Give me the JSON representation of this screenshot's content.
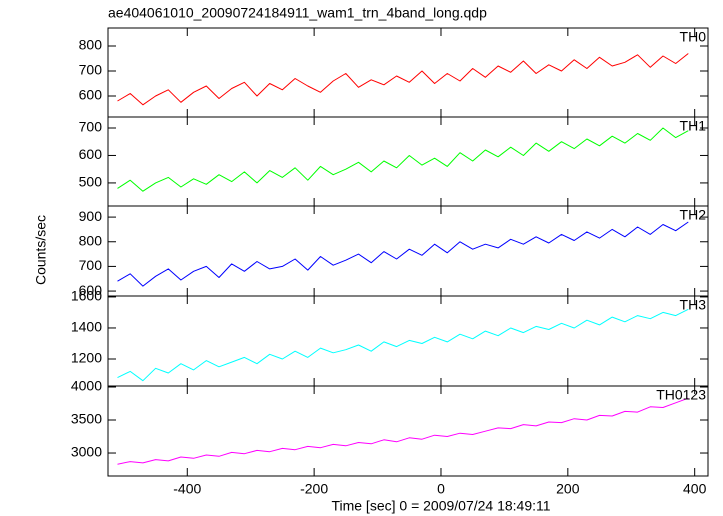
{
  "chart_data": [
    {
      "type": "line",
      "title": "ae404061010_20090724184911_wam1_trn_4band_long.qdp",
      "label": "TH0",
      "color": "#ff0000",
      "x": [
        -510,
        -490,
        -470,
        -450,
        -430,
        -410,
        -390,
        -370,
        -350,
        -330,
        -310,
        -290,
        -270,
        -250,
        -230,
        -210,
        -190,
        -170,
        -150,
        -130,
        -110,
        -90,
        -70,
        -50,
        -30,
        -10,
        10,
        30,
        50,
        70,
        90,
        110,
        130,
        150,
        170,
        190,
        210,
        230,
        250,
        270,
        290,
        310,
        330,
        350,
        370,
        390
      ],
      "values": [
        580,
        610,
        565,
        600,
        625,
        575,
        615,
        640,
        590,
        630,
        655,
        600,
        650,
        625,
        670,
        640,
        615,
        660,
        690,
        635,
        665,
        645,
        680,
        655,
        700,
        650,
        690,
        660,
        710,
        675,
        720,
        695,
        740,
        690,
        725,
        700,
        745,
        710,
        755,
        720,
        735,
        765,
        715,
        760,
        730,
        770
      ],
      "xlim": [
        -525,
        421
      ],
      "ylim": [
        516,
        872
      ],
      "yticks": [
        600,
        700,
        800
      ]
    },
    {
      "type": "line",
      "label": "TH1",
      "color": "#00ff00",
      "x": [
        -510,
        -490,
        -470,
        -450,
        -430,
        -410,
        -390,
        -370,
        -350,
        -330,
        -310,
        -290,
        -270,
        -250,
        -230,
        -210,
        -190,
        -170,
        -150,
        -130,
        -110,
        -90,
        -70,
        -50,
        -30,
        -10,
        10,
        30,
        50,
        70,
        90,
        110,
        130,
        150,
        170,
        190,
        210,
        230,
        250,
        270,
        290,
        310,
        330,
        350,
        370,
        390
      ],
      "values": [
        480,
        510,
        470,
        500,
        520,
        485,
        515,
        495,
        530,
        505,
        540,
        500,
        545,
        520,
        555,
        510,
        560,
        530,
        550,
        575,
        540,
        580,
        555,
        600,
        565,
        590,
        560,
        610,
        580,
        620,
        595,
        630,
        600,
        645,
        615,
        650,
        625,
        660,
        635,
        670,
        645,
        680,
        655,
        700,
        665,
        690
      ],
      "xlim": [
        -525,
        421
      ],
      "ylim": [
        416,
        740
      ],
      "yticks": [
        500,
        600,
        700
      ]
    },
    {
      "type": "line",
      "label": "TH2",
      "color": "#0000ff",
      "ylabel": "Counts/sec",
      "x": [
        -510,
        -490,
        -470,
        -450,
        -430,
        -410,
        -390,
        -370,
        -350,
        -330,
        -310,
        -290,
        -270,
        -250,
        -230,
        -210,
        -190,
        -170,
        -150,
        -130,
        -110,
        -90,
        -70,
        -50,
        -30,
        -10,
        10,
        30,
        50,
        70,
        90,
        110,
        130,
        150,
        170,
        190,
        210,
        230,
        250,
        270,
        290,
        310,
        330,
        350,
        370,
        390
      ],
      "values": [
        640,
        670,
        620,
        660,
        690,
        645,
        680,
        700,
        655,
        710,
        680,
        720,
        690,
        700,
        730,
        685,
        740,
        705,
        725,
        750,
        715,
        760,
        730,
        770,
        745,
        790,
        755,
        800,
        770,
        790,
        775,
        810,
        790,
        820,
        795,
        830,
        805,
        840,
        815,
        850,
        820,
        860,
        830,
        870,
        845,
        880
      ],
      "xlim": [
        -525,
        421
      ],
      "ylim": [
        580,
        945
      ],
      "yticks": [
        600,
        700,
        800,
        900
      ]
    },
    {
      "type": "line",
      "label": "TH3",
      "color": "#00ffff",
      "x": [
        -510,
        -490,
        -470,
        -450,
        -430,
        -410,
        -390,
        -370,
        -350,
        -330,
        -310,
        -290,
        -270,
        -250,
        -230,
        -210,
        -190,
        -170,
        -150,
        -130,
        -110,
        -90,
        -70,
        -50,
        -30,
        -10,
        10,
        30,
        50,
        70,
        90,
        110,
        130,
        150,
        170,
        190,
        210,
        230,
        250,
        270,
        290,
        310,
        330,
        350,
        370,
        390
      ],
      "values": [
        1080,
        1120,
        1060,
        1140,
        1110,
        1170,
        1130,
        1190,
        1150,
        1180,
        1210,
        1170,
        1230,
        1200,
        1250,
        1210,
        1270,
        1240,
        1260,
        1290,
        1250,
        1310,
        1280,
        1320,
        1300,
        1340,
        1310,
        1360,
        1330,
        1380,
        1350,
        1400,
        1370,
        1410,
        1390,
        1430,
        1400,
        1450,
        1420,
        1470,
        1440,
        1480,
        1460,
        1500,
        1480,
        1520
      ],
      "xlim": [
        -525,
        421
      ],
      "ylim": [
        1026,
        1606
      ],
      "yticks": [
        1200,
        1400,
        1600
      ]
    },
    {
      "type": "line",
      "label": "TH0123",
      "color": "#ff00ff",
      "xlabel": "Time [sec] 0 = 2009/07/24 18:49:11",
      "x": [
        -510,
        -490,
        -470,
        -450,
        -430,
        -410,
        -390,
        -370,
        -350,
        -330,
        -310,
        -290,
        -270,
        -250,
        -230,
        -210,
        -190,
        -170,
        -150,
        -130,
        -110,
        -90,
        -70,
        -50,
        -30,
        -10,
        10,
        30,
        50,
        70,
        90,
        110,
        130,
        150,
        170,
        190,
        210,
        230,
        250,
        270,
        290,
        310,
        330,
        350,
        370,
        390
      ],
      "values": [
        2830,
        2870,
        2850,
        2900,
        2880,
        2940,
        2920,
        2970,
        2950,
        3010,
        2990,
        3040,
        3020,
        3070,
        3050,
        3100,
        3080,
        3130,
        3110,
        3160,
        3140,
        3200,
        3170,
        3230,
        3210,
        3270,
        3250,
        3300,
        3280,
        3330,
        3380,
        3370,
        3430,
        3410,
        3470,
        3460,
        3520,
        3500,
        3570,
        3560,
        3630,
        3620,
        3700,
        3690,
        3760,
        3830
      ],
      "xlim": [
        -525,
        421
      ],
      "ylim": [
        2652,
        4015
      ],
      "yticks": [
        3000,
        3500,
        4000
      ],
      "xticks": [
        -400,
        -200,
        0,
        200,
        400
      ]
    }
  ]
}
